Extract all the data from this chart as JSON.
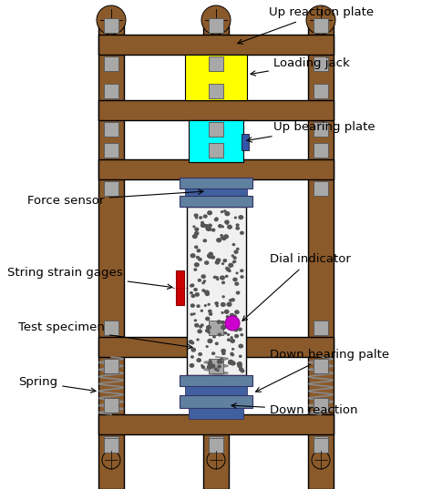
{
  "bg_color": "#ffffff",
  "wood_color": "#8B5A2B",
  "steel_color": "#6080A0",
  "steel_dark": "#4060A0",
  "yellow_color": "#FFFF00",
  "cyan_color": "#00FFFF",
  "red_color": "#CC0000",
  "magenta_color": "#CC00CC",
  "concrete_color": "#F0F0F0",
  "bolt_color": "#A8A8A8",
  "labels": {
    "up_reaction_plate": "Up reaction plate",
    "loading_jack": "Loading jack",
    "up_bearing_plate": "Up bearing plate",
    "force_sensor": "Force sensor",
    "string_strain_gages": "String strain gages",
    "dial_indicator": "Dial indicator",
    "test_specimen": "Test specimen",
    "down_bearing_plate": "Down bearing palte",
    "spring": "Spring",
    "down_reaction": "Down reaction"
  },
  "figsize": [
    4.74,
    5.37
  ],
  "dpi": 100
}
